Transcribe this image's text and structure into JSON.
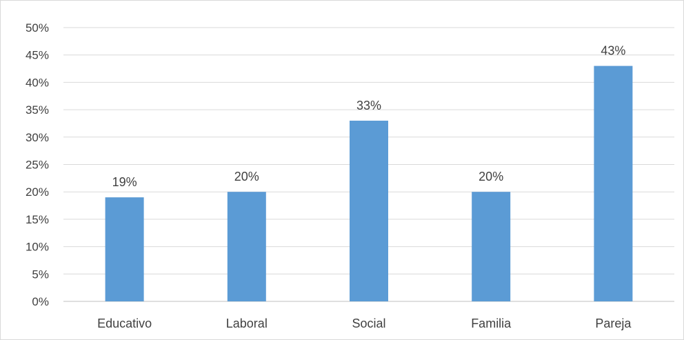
{
  "chart_data": {
    "type": "bar",
    "categories": [
      "Educativo",
      "Laboral",
      "Social",
      "Familia",
      "Pareja"
    ],
    "values": [
      19,
      20,
      33,
      20,
      43
    ],
    "value_labels": [
      "19%",
      "20%",
      "33%",
      "20%",
      "43%"
    ],
    "title": "",
    "xlabel": "",
    "ylabel": "",
    "ylim": [
      0,
      50
    ],
    "y_ticks": [
      0,
      5,
      10,
      15,
      20,
      25,
      30,
      35,
      40,
      45,
      50
    ],
    "y_tick_labels": [
      "0%",
      "5%",
      "10%",
      "15%",
      "20%",
      "25%",
      "30%",
      "35%",
      "40%",
      "45%",
      "50%"
    ],
    "grid": true,
    "legend": "none",
    "bar_color": "#5b9bd5"
  }
}
